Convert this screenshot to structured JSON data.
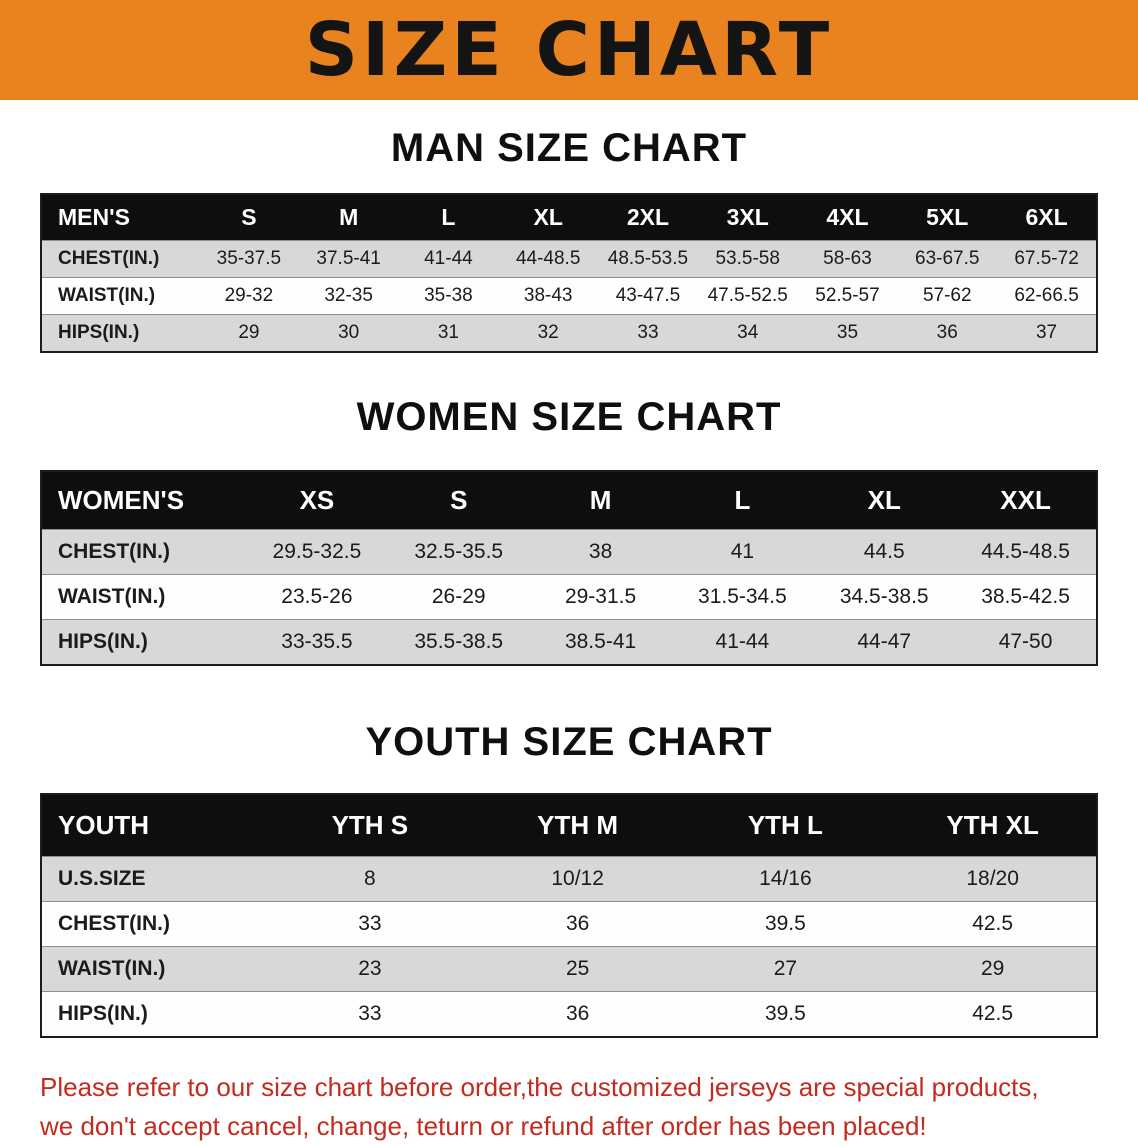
{
  "banner": {
    "title": "SIZE CHART",
    "bg_color": "#E8831F",
    "text_color": "#141414"
  },
  "sections": [
    {
      "id": "men",
      "heading": "MAN SIZE CHART",
      "table": {
        "header": [
          "MEN'S",
          "S",
          "M",
          "L",
          "XL",
          "2XL",
          "3XL",
          "4XL",
          "5XL",
          "6XL"
        ],
        "rows": [
          [
            "CHEST(IN.)",
            "35-37.5",
            "37.5-41",
            "41-44",
            "44-48.5",
            "48.5-53.5",
            "53.5-58",
            "58-63",
            "63-67.5",
            "67.5-72"
          ],
          [
            "WAIST(IN.)",
            "29-32",
            "32-35",
            "35-38",
            "38-43",
            "43-47.5",
            "47.5-52.5",
            "52.5-57",
            "57-62",
            "62-66.5"
          ],
          [
            "HIPS(IN.)",
            "29",
            "30",
            "31",
            "32",
            "33",
            "34",
            "35",
            "36",
            "37"
          ]
        ]
      }
    },
    {
      "id": "women",
      "heading": "WOMEN SIZE CHART",
      "table": {
        "header": [
          "WOMEN'S",
          "XS",
          "S",
          "M",
          "L",
          "XL",
          "XXL"
        ],
        "rows": [
          [
            "CHEST(IN.)",
            "29.5-32.5",
            "32.5-35.5",
            "38",
            "41",
            "44.5",
            "44.5-48.5"
          ],
          [
            "WAIST(IN.)",
            "23.5-26",
            "26-29",
            "29-31.5",
            "31.5-34.5",
            "34.5-38.5",
            "38.5-42.5"
          ],
          [
            "HIPS(IN.)",
            "33-35.5",
            "35.5-38.5",
            "38.5-41",
            "41-44",
            "44-47",
            "47-50"
          ]
        ]
      }
    },
    {
      "id": "youth",
      "heading": "YOUTH SIZE CHART",
      "table": {
        "header": [
          "YOUTH",
          "YTH S",
          "YTH M",
          "YTH L",
          "YTH XL"
        ],
        "rows": [
          [
            "U.S.SIZE",
            "8",
            "10/12",
            "14/16",
            "18/20"
          ],
          [
            "CHEST(IN.)",
            "33",
            "36",
            "39.5",
            "42.5"
          ],
          [
            "WAIST(IN.)",
            "23",
            "25",
            "27",
            "29"
          ],
          [
            "HIPS(IN.)",
            "33",
            "36",
            "39.5",
            "42.5"
          ]
        ]
      }
    }
  ],
  "disclaimer": {
    "lines": [
      "Please refer to our size chart before order,the customized jerseys are special products,",
      "we don't accept cancel, change, teturn or refund after order has been placed!"
    ],
    "color": "#C32B1F"
  },
  "colors": {
    "header_row_bg": "#0e0e0e",
    "alt_row_bg": "#d8d8d8",
    "plain_row_bg": "#fefefe"
  }
}
